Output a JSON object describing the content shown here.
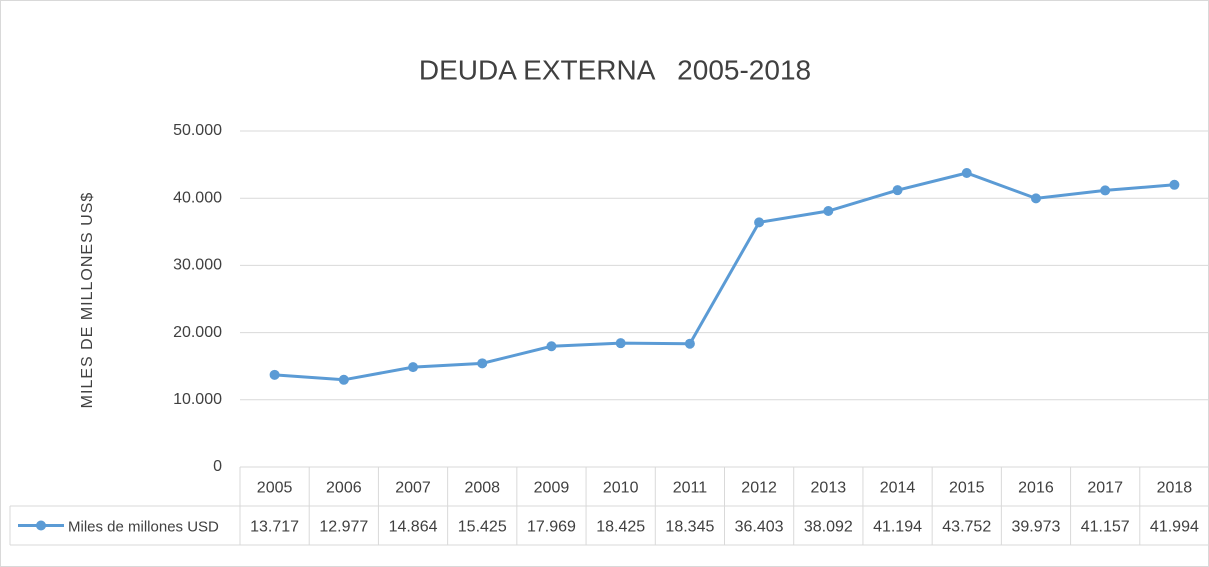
{
  "chart_data": {
    "type": "line",
    "title": "DEUDA EXTERNA   2005-2018",
    "y_label": "MILES DE MILLONES  US$",
    "categories": [
      "2005",
      "2006",
      "2007",
      "2008",
      "2009",
      "2010",
      "2011",
      "2012",
      "2013",
      "2014",
      "2015",
      "2016",
      "2017",
      "2018"
    ],
    "series": [
      {
        "name": "Miles de millones USD",
        "color": "#5b9bd5",
        "values": [
          13717,
          12977,
          14864,
          15425,
          17969,
          18425,
          18345,
          36403,
          38092,
          41194,
          43752,
          39973,
          41157,
          41994
        ],
        "value_labels": [
          "13.717",
          "12.977",
          "14.864",
          "15.425",
          "17.969",
          "18.425",
          "18.345",
          "36.403",
          "38.092",
          "41.194",
          "43.752",
          "39.973",
          "41.157",
          "41.994"
        ]
      }
    ],
    "ylim": [
      0,
      50000
    ],
    "yticks": [
      0,
      {
        "value": 10000,
        "label": "10.000"
      },
      {
        "value": 20000,
        "label": "20.000"
      },
      {
        "value": 30000,
        "label": "30.000"
      },
      {
        "value": 40000,
        "label": "40.000"
      },
      {
        "value": 50000,
        "label": "50.000"
      }
    ],
    "grid": true
  }
}
